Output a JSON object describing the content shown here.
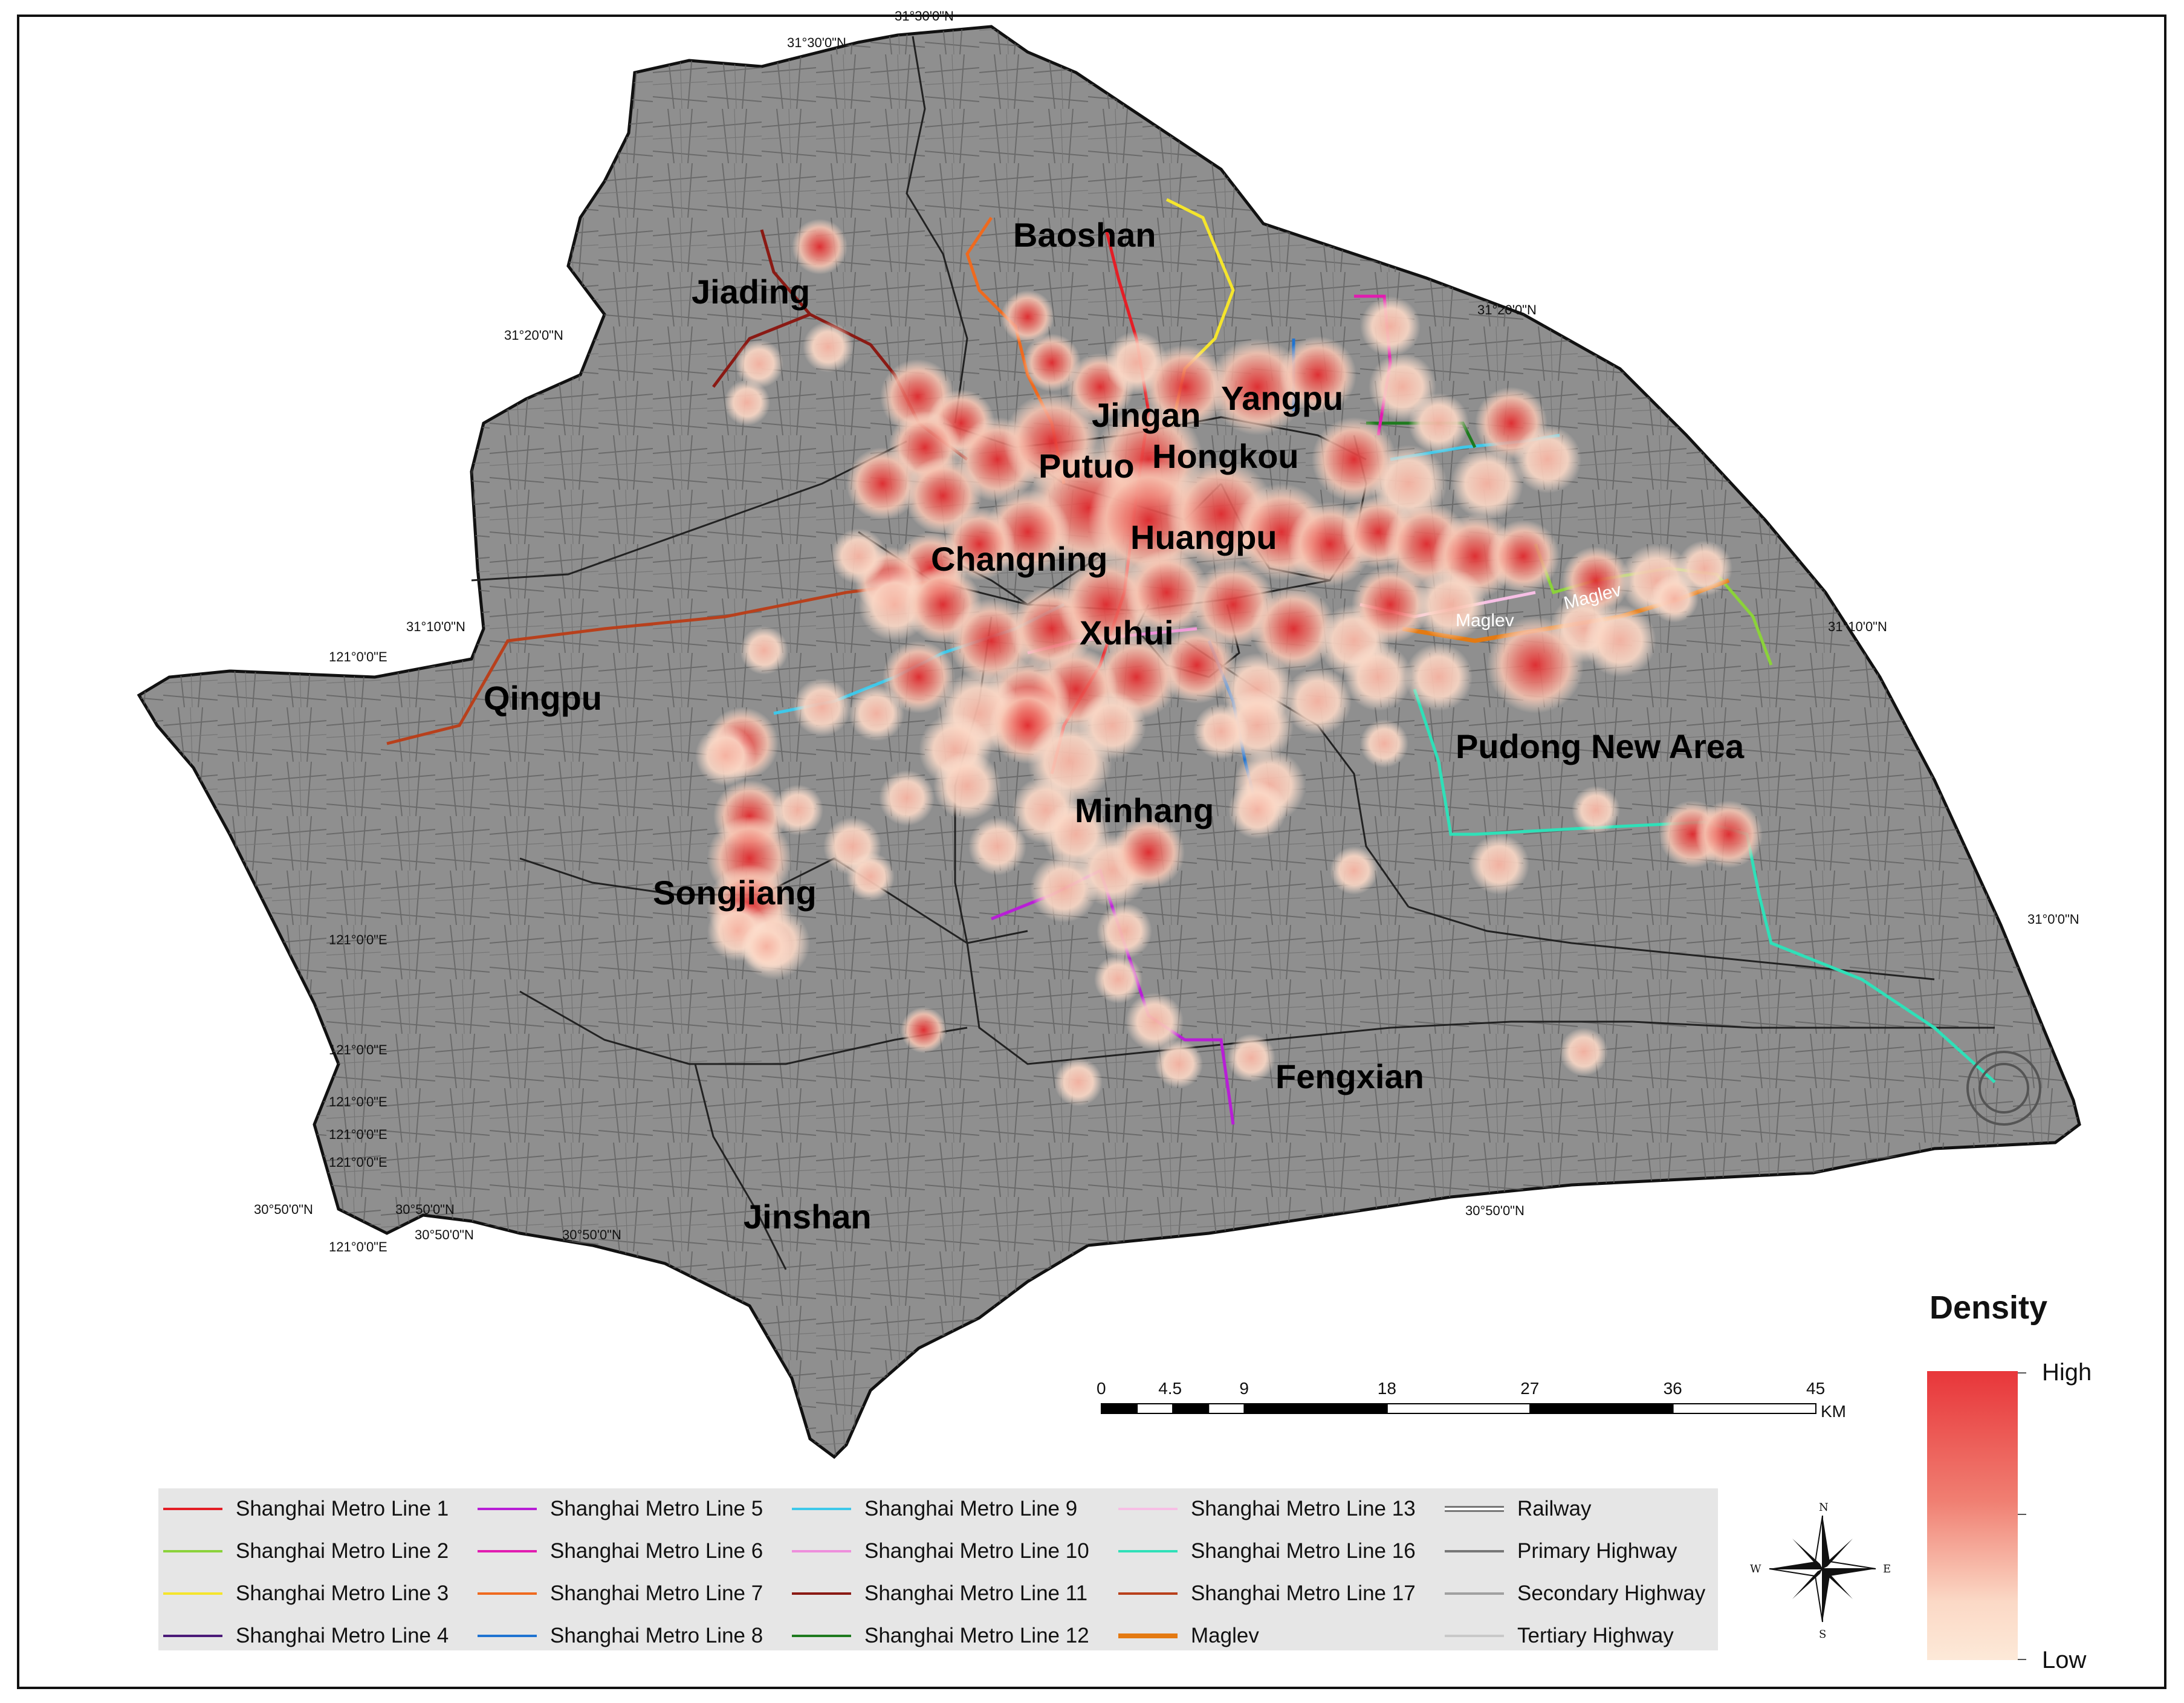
{
  "districts": [
    {
      "name": "Baoshan"
    },
    {
      "name": "Jiading"
    },
    {
      "name": "Jingan"
    },
    {
      "name": "Yangpu"
    },
    {
      "name": "Putuo"
    },
    {
      "name": "Hongkou"
    },
    {
      "name": "Huangpu"
    },
    {
      "name": "Changning"
    },
    {
      "name": "Xuhui"
    },
    {
      "name": "Qingpu"
    },
    {
      "name": "Pudong New Area"
    },
    {
      "name": "Minhang"
    },
    {
      "name": "Songjiang"
    },
    {
      "name": "Fengxian"
    },
    {
      "name": "Jinshan"
    }
  ],
  "coordinates": [
    {
      "text": "31°30'0\"N"
    },
    {
      "text": "31°30'0\"N"
    },
    {
      "text": "31°20'0\"N"
    },
    {
      "text": "31°20'0\"N"
    },
    {
      "text": "31°10'0\"N"
    },
    {
      "text": "31°10'0\"N"
    },
    {
      "text": "121°0'0\"E"
    },
    {
      "text": "31°0'0\"N"
    },
    {
      "text": "121°0'0\"E"
    },
    {
      "text": "121°0'0\"E"
    },
    {
      "text": "121°0'0\"E"
    },
    {
      "text": "121°0'0\"E"
    },
    {
      "text": "121°0'0\"E"
    },
    {
      "text": "30°50'0\"N"
    },
    {
      "text": "30°50'0\"N"
    },
    {
      "text": "121°0'0\"E"
    },
    {
      "text": "30°50'0\"N"
    },
    {
      "text": "30°50'0\"N"
    },
    {
      "text": "30°50'0\"N"
    }
  ],
  "maglev_labels": [
    "Maglev",
    "Maglev"
  ],
  "scale_bar": {
    "ticks": [
      "0",
      "4.5",
      "9",
      "18",
      "27",
      "36",
      "45"
    ],
    "unit": "KM"
  },
  "density_legend": {
    "title": "Density",
    "high": "High",
    "low": "Low",
    "colors": {
      "high": "#e8363a",
      "low": "#fde9d8"
    }
  },
  "compass": {
    "n": "N",
    "s": "S",
    "e": "E",
    "w": "W"
  },
  "legend": [
    {
      "label": "Shanghai Metro Line 1",
      "color": "#e41e26"
    },
    {
      "label": "Shanghai Metro Line 2",
      "color": "#8bd23a"
    },
    {
      "label": "Shanghai Metro Line 3",
      "color": "#f5e52c"
    },
    {
      "label": "Shanghai Metro Line 4",
      "color": "#4b1a78"
    },
    {
      "label": "Shanghai Metro Line 5",
      "color": "#b81ed6"
    },
    {
      "label": "Shanghai Metro Line 6",
      "color": "#e11cb0"
    },
    {
      "label": "Shanghai Metro Line 7",
      "color": "#ef6a1f"
    },
    {
      "label": "Shanghai Metro Line 8",
      "color": "#1f73d1"
    },
    {
      "label": "Shanghai Metro Line 9",
      "color": "#3ec8ea"
    },
    {
      "label": "Shanghai Metro Line 10",
      "color": "#ee8edc"
    },
    {
      "label": "Shanghai Metro Line 11",
      "color": "#8a1a14"
    },
    {
      "label": "Shanghai Metro Line 12",
      "color": "#1e7a1e"
    },
    {
      "label": "Shanghai Metro Line 13",
      "color": "#f7bfe5"
    },
    {
      "label": "Shanghai Metro Line 16",
      "color": "#2fe0b8"
    },
    {
      "label": "Shanghai Metro Line 17",
      "color": "#b8401c"
    },
    {
      "label": "Maglev",
      "color": "#e47a12"
    },
    {
      "label": "Railway",
      "color": "#888888"
    },
    {
      "label": "Primary Highway",
      "color": "#777777"
    },
    {
      "label": "Secondary Highway",
      "color": "#a0a0a0"
    },
    {
      "label": "Tertiary Highway",
      "color": "#c8c8c8"
    }
  ]
}
